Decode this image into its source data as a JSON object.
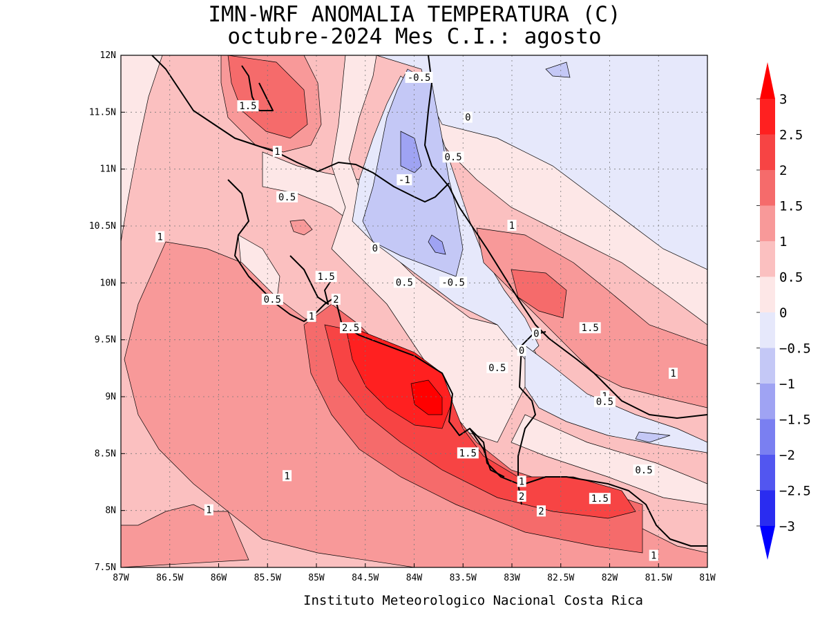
{
  "title": {
    "line1": "IMN-WRF  ANOMALIA TEMPERATURA (C)",
    "line2": "octubre-2024 Mes C.I.: agosto"
  },
  "credit": "Instituto Meteorologico Nacional Costa Rica",
  "axes": {
    "lon_labels": [
      "87W",
      "86.5W",
      "86W",
      "85.5W",
      "85W",
      "84.5W",
      "84W",
      "83.5W",
      "83W",
      "82.5W",
      "82W",
      "81.5W",
      "81W"
    ],
    "lat_labels": [
      "12N",
      "11.5N",
      "11N",
      "10.5N",
      "10N",
      "9.5N",
      "9N",
      "8.5N",
      "8N",
      "7.5N"
    ],
    "lon_range": [
      -87,
      -81
    ],
    "lat_range": [
      7.5,
      12
    ],
    "grid": "dotted"
  },
  "colorbar": {
    "orientation": "vertical",
    "placement": "right",
    "labels": [
      "3",
      "2.5",
      "2",
      "1.5",
      "1",
      "0.5",
      "0",
      "−0.5",
      "−1",
      "−1.5",
      "−2",
      "−2.5",
      "−3"
    ],
    "classes": [
      {
        "range": "> 3",
        "color": "#ff0000"
      },
      {
        "range": "2.5 – 3",
        "color": "#ff2020"
      },
      {
        "range": "2 – 2.5",
        "color": "#f74444"
      },
      {
        "range": "1.5 – 2",
        "color": "#f56b6b"
      },
      {
        "range": "1 – 1.5",
        "color": "#f89999"
      },
      {
        "range": "0.5 – 1",
        "color": "#fbc0c0"
      },
      {
        "range": "0 – 0.5",
        "color": "#fde7e7"
      },
      {
        "range": "−0.5 – 0",
        "color": "#e6e8fb"
      },
      {
        "range": "−1 – −0.5",
        "color": "#c4c8f6"
      },
      {
        "range": "−1.5 – −1",
        "color": "#9fa3f3"
      },
      {
        "range": "−2 – −1.5",
        "color": "#7a7ff1"
      },
      {
        "range": "−2.5 – −2",
        "color": "#5256f0"
      },
      {
        "range": "−3 – −2.5",
        "color": "#2a2cf0"
      },
      {
        "range": "< −3",
        "color": "#0000ff"
      }
    ]
  },
  "contour_labels": [
    {
      "text": "1.5",
      "lon": -85.7,
      "lat": 11.55
    },
    {
      "text": "1",
      "lon": -85.4,
      "lat": 11.15
    },
    {
      "text": "-0.5",
      "lon": -83.95,
      "lat": 11.8
    },
    {
      "text": "0",
      "lon": -83.45,
      "lat": 11.45
    },
    {
      "text": "0.5",
      "lon": -83.6,
      "lat": 11.1
    },
    {
      "text": "-1",
      "lon": -84.1,
      "lat": 10.9
    },
    {
      "text": "0.5",
      "lon": -85.3,
      "lat": 10.75
    },
    {
      "text": "1",
      "lon": -86.6,
      "lat": 10.4
    },
    {
      "text": "0",
      "lon": -84.4,
      "lat": 10.3
    },
    {
      "text": "1",
      "lon": -83.0,
      "lat": 10.5
    },
    {
      "text": "0.5",
      "lon": -84.1,
      "lat": 10.0
    },
    {
      "text": "-0.5",
      "lon": -83.6,
      "lat": 10.0
    },
    {
      "text": "1.5",
      "lon": -84.9,
      "lat": 10.05
    },
    {
      "text": "2",
      "lon": -84.8,
      "lat": 9.85
    },
    {
      "text": "0.5",
      "lon": -85.45,
      "lat": 9.85
    },
    {
      "text": "1",
      "lon": -85.05,
      "lat": 9.7
    },
    {
      "text": "2.5",
      "lon": -84.65,
      "lat": 9.6
    },
    {
      "text": "1.5",
      "lon": -82.2,
      "lat": 9.6
    },
    {
      "text": "0",
      "lon": -82.75,
      "lat": 9.55
    },
    {
      "text": "0",
      "lon": -82.9,
      "lat": 9.4
    },
    {
      "text": "0.5",
      "lon": -83.15,
      "lat": 9.25
    },
    {
      "text": "1",
      "lon": -81.35,
      "lat": 9.2
    },
    {
      "text": "1",
      "lon": -82.05,
      "lat": 9.0
    },
    {
      "text": "0.5",
      "lon": -82.05,
      "lat": 8.95
    },
    {
      "text": "1.5",
      "lon": -83.45,
      "lat": 8.5
    },
    {
      "text": "1",
      "lon": -85.3,
      "lat": 8.3
    },
    {
      "text": "0.5",
      "lon": -81.65,
      "lat": 8.35
    },
    {
      "text": "1",
      "lon": -82.9,
      "lat": 8.25
    },
    {
      "text": "2",
      "lon": -82.9,
      "lat": 8.12
    },
    {
      "text": "1.5",
      "lon": -82.1,
      "lat": 8.1
    },
    {
      "text": "1",
      "lon": -86.1,
      "lat": 8.0
    },
    {
      "text": "2",
      "lon": -82.7,
      "lat": 7.99
    },
    {
      "text": "1",
      "lon": -81.55,
      "lat": 7.6
    }
  ]
}
